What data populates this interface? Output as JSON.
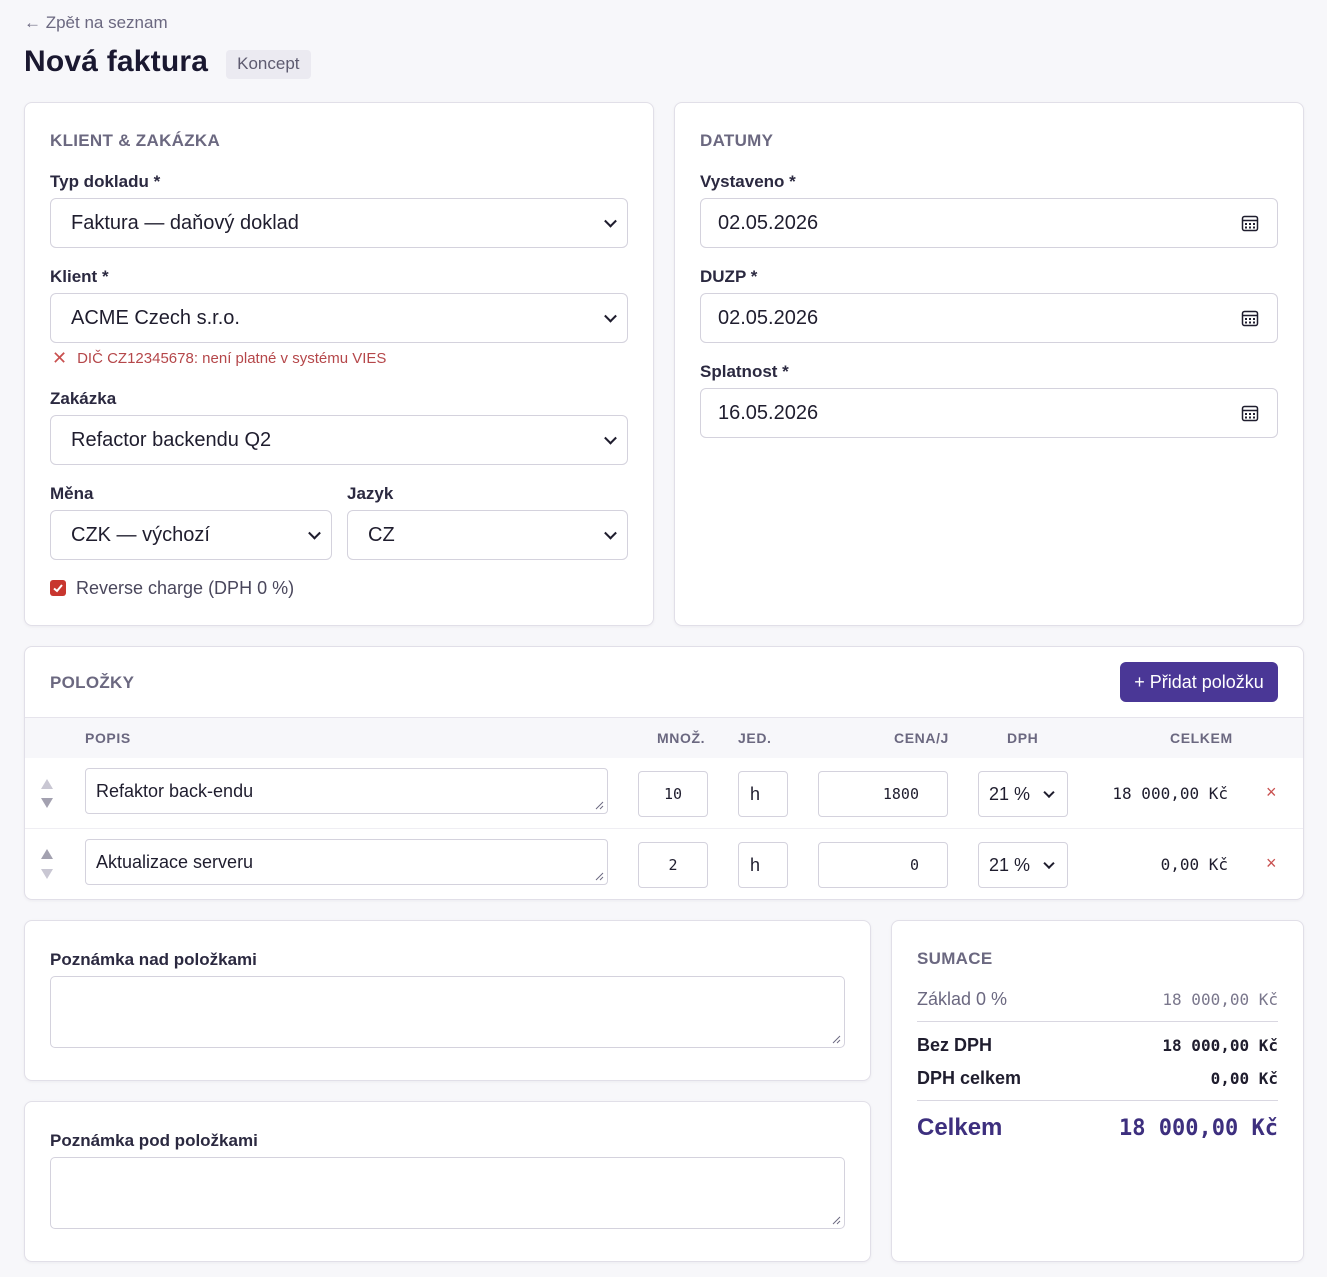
{
  "header": {
    "back_link": "← Zpět na seznam",
    "title": "Nová faktura",
    "status": "Koncept"
  },
  "client_section": {
    "title": "KLIENT & ZAKÁZKA",
    "doc_type_label": "Typ dokladu *",
    "doc_type_value": "Faktura — daňový doklad",
    "client_label": "Klient *",
    "client_value": "ACME Czech s.r.o.",
    "client_error": "DIČ CZ12345678: není platné v systému VIES",
    "project_label": "Zakázka",
    "project_value": "Refactor backendu Q2",
    "currency_label": "Měna",
    "currency_value": "CZK — výchozí",
    "language_label": "Jazyk",
    "language_value": "CZ",
    "reverse_charge_label": "Reverse charge (DPH 0 %)",
    "reverse_charge_checked": true
  },
  "dates_section": {
    "title": "DATUMY",
    "issued_label": "Vystaveno *",
    "issued_value": "02.05.2026",
    "duzp_label": "DUZP *",
    "duzp_value": "02.05.2026",
    "due_label": "Splatnost *",
    "due_value": "16.05.2026"
  },
  "items_section": {
    "title": "POLOŽKY",
    "add_button": "+ Přidat položku",
    "columns": {
      "description": "POPIS",
      "quantity": "MNOŽ.",
      "unit": "JED.",
      "unit_price": "CENA/J",
      "vat": "DPH",
      "total": "CELKEM"
    },
    "rows": [
      {
        "description": "Refaktor back-endu",
        "quantity": "10",
        "unit": "h",
        "unit_price": "1800",
        "vat": "21 %",
        "total": "18 000,00 Kč"
      },
      {
        "description": "Aktualizace serveru",
        "quantity": "2",
        "unit": "h",
        "unit_price": "0",
        "vat": "21 %",
        "total": "0,00 Kč"
      }
    ],
    "remove_symbol": "×"
  },
  "notes": {
    "above_label": "Poznámka nad položkami",
    "above_value": "",
    "below_label": "Poznámka pod položkami",
    "below_value": ""
  },
  "summary": {
    "title": "SUMACE",
    "base_label": "Základ 0 %",
    "base_value": "18 000,00 Kč",
    "net_label": "Bez DPH",
    "net_value": "18 000,00 Kč",
    "vat_label": "DPH celkem",
    "vat_value": "0,00 Kč",
    "total_label": "Celkem",
    "total_value": "18 000,00 Kč"
  },
  "colors": {
    "accent": "#4a3796",
    "error": "#c9504f",
    "checkbox": "#c8362f"
  }
}
